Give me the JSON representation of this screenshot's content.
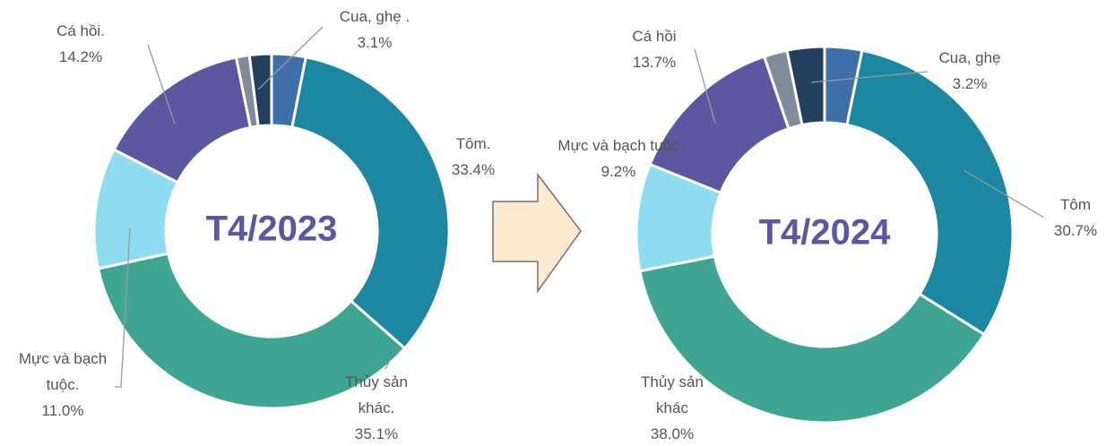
{
  "chart_data": [
    {
      "type": "donut",
      "title": "T4/2023",
      "categories": [
        "Cua, ghẹ .",
        "Tôm.",
        "Thủy sản khác.",
        "Mực và bạch tuộc.",
        "Cá hồi.",
        null,
        null
      ],
      "values": [
        3.1,
        33.4,
        35.1,
        11.0,
        14.2,
        1.2,
        2.0
      ],
      "value_labels": [
        "3.1%",
        "33.4%",
        "35.1%",
        "11.0%",
        "14.2%",
        null,
        null
      ],
      "colors": [
        "#3f6fa8",
        "#1b87a0",
        "#3fa593",
        "#8ddcef",
        "#5b57a0",
        "#7f8c99",
        "#233f5e"
      ]
    },
    {
      "type": "donut",
      "title": "T4/2024",
      "categories": [
        "Cua, ghẹ",
        "Tôm",
        "Thủy sản khác",
        "Mực và bạch tuộc",
        "Cá hồi",
        null,
        null
      ],
      "values": [
        3.2,
        30.7,
        38.0,
        9.2,
        13.7,
        2.0,
        3.2
      ],
      "value_labels": [
        "3.2%",
        "30.7%",
        "38.0%",
        "9.2%",
        "13.7%",
        null,
        null
      ],
      "colors": [
        "#3f6fa8",
        "#1b87a0",
        "#3fa593",
        "#8ddcef",
        "#5b57a0",
        "#7f8c99",
        "#233f5e"
      ]
    }
  ]
}
